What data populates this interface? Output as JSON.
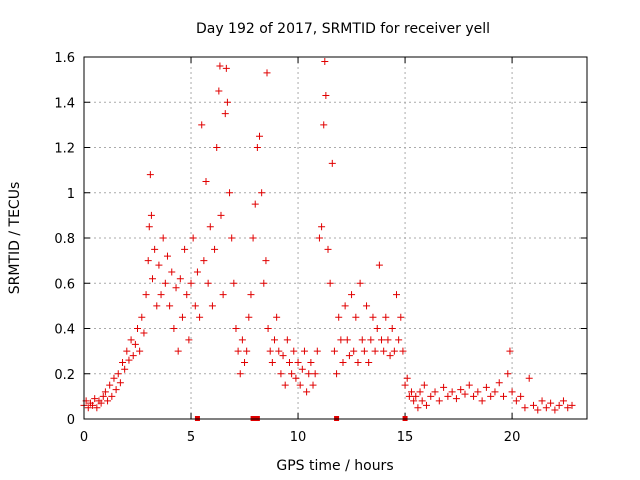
{
  "chart_data": {
    "type": "scatter",
    "title": "Day 192 of 2017, SRMTID for receiver yell",
    "xlabel": "GPS time / hours",
    "ylabel": "SRMTID / TECUs",
    "xlim": [
      0,
      23.5
    ],
    "ylim": [
      0,
      1.6
    ],
    "xticks": [
      0,
      5,
      10,
      15,
      20
    ],
    "yticks": [
      0,
      0.2,
      0.4,
      0.6,
      0.8,
      1,
      1.2,
      1.4,
      1.6
    ],
    "xtick_labels": [
      "0",
      "5",
      "10",
      "15",
      "20"
    ],
    "ytick_labels": [
      "0",
      "0.2",
      "0.4",
      "0.6",
      "0.8",
      "1",
      "1.2",
      "1.4",
      "1.6"
    ],
    "grid": true,
    "marker": "+",
    "color": "#e00000",
    "series": [
      {
        "name": "SRMTID",
        "points": [
          [
            0.0,
            0.06
          ],
          [
            0.1,
            0.08
          ],
          [
            0.2,
            0.05
          ],
          [
            0.3,
            0.07
          ],
          [
            0.4,
            0.06
          ],
          [
            0.5,
            0.09
          ],
          [
            0.6,
            0.05
          ],
          [
            0.7,
            0.08
          ],
          [
            0.8,
            0.07
          ],
          [
            0.9,
            0.1
          ],
          [
            1.0,
            0.12
          ],
          [
            1.1,
            0.08
          ],
          [
            1.2,
            0.15
          ],
          [
            1.3,
            0.1
          ],
          [
            1.4,
            0.18
          ],
          [
            1.5,
            0.13
          ],
          [
            1.6,
            0.2
          ],
          [
            1.7,
            0.16
          ],
          [
            1.8,
            0.25
          ],
          [
            1.9,
            0.22
          ],
          [
            2.0,
            0.3
          ],
          [
            2.1,
            0.26
          ],
          [
            2.2,
            0.35
          ],
          [
            2.3,
            0.28
          ],
          [
            2.4,
            0.33
          ],
          [
            2.5,
            0.4
          ],
          [
            2.6,
            0.3
          ],
          [
            2.7,
            0.45
          ],
          [
            2.8,
            0.38
          ],
          [
            2.9,
            0.55
          ],
          [
            3.0,
            0.7
          ],
          [
            3.05,
            0.85
          ],
          [
            3.1,
            1.08
          ],
          [
            3.15,
            0.9
          ],
          [
            3.2,
            0.62
          ],
          [
            3.3,
            0.75
          ],
          [
            3.4,
            0.5
          ],
          [
            3.5,
            0.68
          ],
          [
            3.6,
            0.55
          ],
          [
            3.7,
            0.8
          ],
          [
            3.8,
            0.6
          ],
          [
            3.9,
            0.72
          ],
          [
            4.0,
            0.5
          ],
          [
            4.1,
            0.65
          ],
          [
            4.2,
            0.4
          ],
          [
            4.3,
            0.58
          ],
          [
            4.4,
            0.3
          ],
          [
            4.5,
            0.62
          ],
          [
            4.6,
            0.45
          ],
          [
            4.7,
            0.75
          ],
          [
            4.8,
            0.55
          ],
          [
            4.9,
            0.35
          ],
          [
            5.0,
            0.6
          ],
          [
            5.1,
            0.8
          ],
          [
            5.2,
            0.5
          ],
          [
            5.3,
            0.65
          ],
          [
            5.4,
            0.45
          ],
          [
            5.5,
            1.3
          ],
          [
            5.6,
            0.7
          ],
          [
            5.7,
            1.05
          ],
          [
            5.8,
            0.6
          ],
          [
            5.9,
            0.85
          ],
          [
            6.0,
            0.5
          ],
          [
            6.1,
            0.75
          ],
          [
            6.2,
            1.2
          ],
          [
            6.3,
            1.45
          ],
          [
            6.35,
            1.56
          ],
          [
            6.4,
            0.9
          ],
          [
            6.5,
            0.55
          ],
          [
            6.6,
            1.35
          ],
          [
            6.65,
            1.55
          ],
          [
            6.7,
            1.4
          ],
          [
            6.8,
            1.0
          ],
          [
            6.9,
            0.8
          ],
          [
            7.0,
            0.6
          ],
          [
            7.1,
            0.4
          ],
          [
            7.2,
            0.3
          ],
          [
            7.3,
            0.2
          ],
          [
            7.4,
            0.35
          ],
          [
            7.5,
            0.25
          ],
          [
            7.6,
            0.3
          ],
          [
            7.7,
            0.45
          ],
          [
            7.8,
            0.55
          ],
          [
            7.9,
            0.8
          ],
          [
            8.0,
            0.95
          ],
          [
            8.1,
            1.2
          ],
          [
            8.2,
            1.25
          ],
          [
            8.3,
            1.0
          ],
          [
            8.4,
            0.6
          ],
          [
            8.5,
            0.7
          ],
          [
            8.55,
            1.53
          ],
          [
            8.6,
            0.4
          ],
          [
            8.7,
            0.3
          ],
          [
            8.8,
            0.25
          ],
          [
            8.9,
            0.35
          ],
          [
            9.0,
            0.45
          ],
          [
            9.1,
            0.3
          ],
          [
            9.2,
            0.2
          ],
          [
            9.3,
            0.28
          ],
          [
            9.4,
            0.15
          ],
          [
            9.5,
            0.35
          ],
          [
            9.6,
            0.25
          ],
          [
            9.7,
            0.2
          ],
          [
            9.8,
            0.3
          ],
          [
            9.9,
            0.18
          ],
          [
            10.0,
            0.25
          ],
          [
            10.1,
            0.15
          ],
          [
            10.2,
            0.22
          ],
          [
            10.3,
            0.3
          ],
          [
            10.4,
            0.12
          ],
          [
            10.5,
            0.2
          ],
          [
            10.6,
            0.25
          ],
          [
            10.7,
            0.15
          ],
          [
            10.8,
            0.2
          ],
          [
            10.9,
            0.3
          ],
          [
            11.0,
            0.8
          ],
          [
            11.1,
            0.85
          ],
          [
            11.2,
            1.3
          ],
          [
            11.25,
            1.58
          ],
          [
            11.3,
            1.43
          ],
          [
            11.4,
            0.75
          ],
          [
            11.5,
            0.6
          ],
          [
            11.6,
            1.13
          ],
          [
            11.7,
            0.3
          ],
          [
            11.8,
            0.2
          ],
          [
            11.9,
            0.45
          ],
          [
            12.0,
            0.35
          ],
          [
            12.1,
            0.25
          ],
          [
            12.2,
            0.5
          ],
          [
            12.3,
            0.35
          ],
          [
            12.4,
            0.28
          ],
          [
            12.5,
            0.55
          ],
          [
            12.6,
            0.3
          ],
          [
            12.7,
            0.45
          ],
          [
            12.8,
            0.25
          ],
          [
            12.9,
            0.6
          ],
          [
            13.0,
            0.35
          ],
          [
            13.1,
            0.3
          ],
          [
            13.2,
            0.5
          ],
          [
            13.3,
            0.25
          ],
          [
            13.4,
            0.35
          ],
          [
            13.5,
            0.45
          ],
          [
            13.6,
            0.3
          ],
          [
            13.7,
            0.4
          ],
          [
            13.8,
            0.68
          ],
          [
            13.9,
            0.35
          ],
          [
            14.0,
            0.3
          ],
          [
            14.1,
            0.45
          ],
          [
            14.2,
            0.35
          ],
          [
            14.3,
            0.28
          ],
          [
            14.4,
            0.4
          ],
          [
            14.5,
            0.3
          ],
          [
            14.6,
            0.55
          ],
          [
            14.7,
            0.35
          ],
          [
            14.8,
            0.45
          ],
          [
            14.9,
            0.3
          ],
          [
            15.0,
            0.15
          ],
          [
            15.1,
            0.18
          ],
          [
            15.2,
            0.1
          ],
          [
            15.3,
            0.12
          ],
          [
            15.4,
            0.08
          ],
          [
            15.5,
            0.1
          ],
          [
            15.6,
            0.05
          ],
          [
            15.7,
            0.12
          ],
          [
            15.8,
            0.08
          ],
          [
            15.9,
            0.15
          ],
          [
            16.0,
            0.06
          ],
          [
            16.2,
            0.1
          ],
          [
            16.4,
            0.12
          ],
          [
            16.6,
            0.08
          ],
          [
            16.8,
            0.14
          ],
          [
            17.0,
            0.1
          ],
          [
            17.2,
            0.12
          ],
          [
            17.4,
            0.09
          ],
          [
            17.6,
            0.13
          ],
          [
            17.8,
            0.11
          ],
          [
            18.0,
            0.15
          ],
          [
            18.2,
            0.1
          ],
          [
            18.4,
            0.12
          ],
          [
            18.6,
            0.08
          ],
          [
            18.8,
            0.14
          ],
          [
            19.0,
            0.1
          ],
          [
            19.2,
            0.12
          ],
          [
            19.4,
            0.16
          ],
          [
            19.6,
            0.1
          ],
          [
            19.8,
            0.2
          ],
          [
            19.9,
            0.3
          ],
          [
            20.0,
            0.12
          ],
          [
            20.2,
            0.08
          ],
          [
            20.4,
            0.1
          ],
          [
            20.6,
            0.05
          ],
          [
            20.8,
            0.18
          ],
          [
            21.0,
            0.06
          ],
          [
            21.2,
            0.04
          ],
          [
            21.4,
            0.08
          ],
          [
            21.6,
            0.05
          ],
          [
            21.8,
            0.07
          ],
          [
            22.0,
            0.04
          ],
          [
            22.2,
            0.06
          ],
          [
            22.4,
            0.08
          ],
          [
            22.6,
            0.05
          ],
          [
            22.8,
            0.06
          ]
        ]
      }
    ],
    "gap_markers_x": [
      5.3,
      7.9,
      8.1,
      11.8,
      15.0
    ]
  }
}
